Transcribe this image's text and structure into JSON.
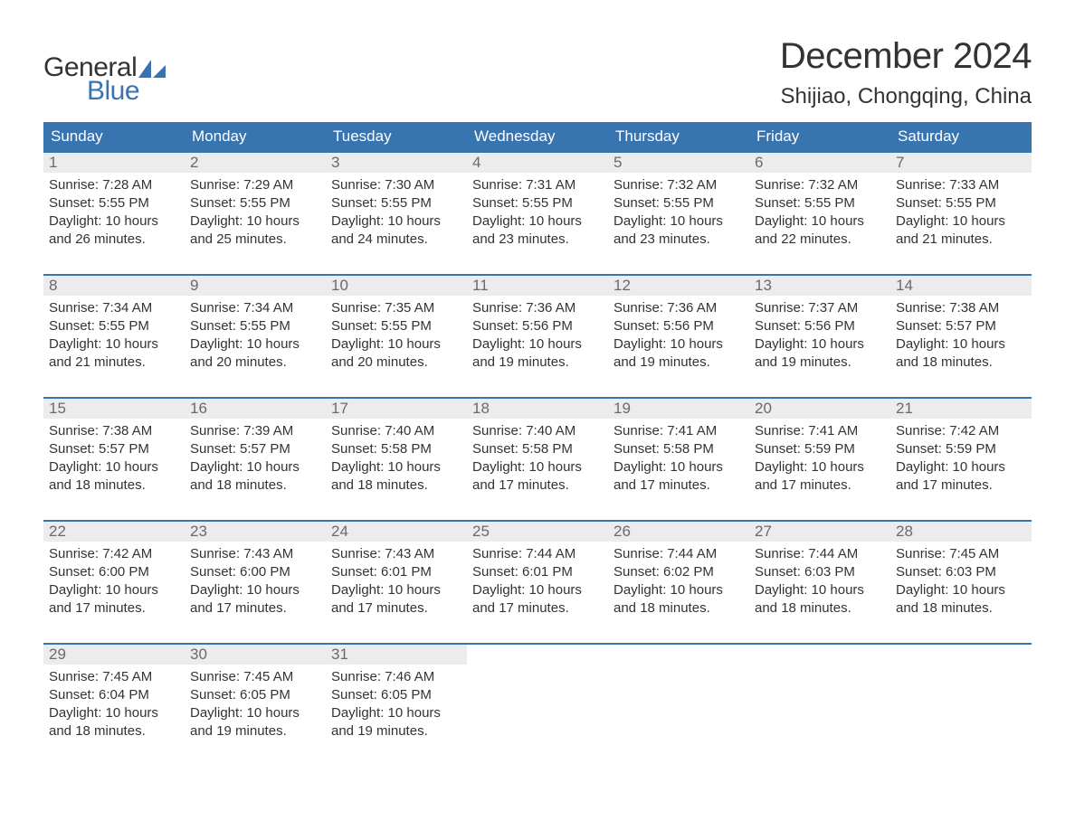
{
  "brand": {
    "general": "General",
    "blue": "Blue"
  },
  "title": {
    "month": "December 2024",
    "location": "Shijiao, Chongqing, China"
  },
  "colors": {
    "header_bg": "#3874b0",
    "daynum_bg": "#ececec",
    "text": "#333333",
    "blue": "#3874b0"
  },
  "weekdays": [
    "Sunday",
    "Monday",
    "Tuesday",
    "Wednesday",
    "Thursday",
    "Friday",
    "Saturday"
  ],
  "weeks": [
    [
      {
        "n": "1",
        "sunrise": "Sunrise: 7:28 AM",
        "sunset": "Sunset: 5:55 PM",
        "day1": "Daylight: 10 hours",
        "day2": "and 26 minutes."
      },
      {
        "n": "2",
        "sunrise": "Sunrise: 7:29 AM",
        "sunset": "Sunset: 5:55 PM",
        "day1": "Daylight: 10 hours",
        "day2": "and 25 minutes."
      },
      {
        "n": "3",
        "sunrise": "Sunrise: 7:30 AM",
        "sunset": "Sunset: 5:55 PM",
        "day1": "Daylight: 10 hours",
        "day2": "and 24 minutes."
      },
      {
        "n": "4",
        "sunrise": "Sunrise: 7:31 AM",
        "sunset": "Sunset: 5:55 PM",
        "day1": "Daylight: 10 hours",
        "day2": "and 23 minutes."
      },
      {
        "n": "5",
        "sunrise": "Sunrise: 7:32 AM",
        "sunset": "Sunset: 5:55 PM",
        "day1": "Daylight: 10 hours",
        "day2": "and 23 minutes."
      },
      {
        "n": "6",
        "sunrise": "Sunrise: 7:32 AM",
        "sunset": "Sunset: 5:55 PM",
        "day1": "Daylight: 10 hours",
        "day2": "and 22 minutes."
      },
      {
        "n": "7",
        "sunrise": "Sunrise: 7:33 AM",
        "sunset": "Sunset: 5:55 PM",
        "day1": "Daylight: 10 hours",
        "day2": "and 21 minutes."
      }
    ],
    [
      {
        "n": "8",
        "sunrise": "Sunrise: 7:34 AM",
        "sunset": "Sunset: 5:55 PM",
        "day1": "Daylight: 10 hours",
        "day2": "and 21 minutes."
      },
      {
        "n": "9",
        "sunrise": "Sunrise: 7:34 AM",
        "sunset": "Sunset: 5:55 PM",
        "day1": "Daylight: 10 hours",
        "day2": "and 20 minutes."
      },
      {
        "n": "10",
        "sunrise": "Sunrise: 7:35 AM",
        "sunset": "Sunset: 5:55 PM",
        "day1": "Daylight: 10 hours",
        "day2": "and 20 minutes."
      },
      {
        "n": "11",
        "sunrise": "Sunrise: 7:36 AM",
        "sunset": "Sunset: 5:56 PM",
        "day1": "Daylight: 10 hours",
        "day2": "and 19 minutes."
      },
      {
        "n": "12",
        "sunrise": "Sunrise: 7:36 AM",
        "sunset": "Sunset: 5:56 PM",
        "day1": "Daylight: 10 hours",
        "day2": "and 19 minutes."
      },
      {
        "n": "13",
        "sunrise": "Sunrise: 7:37 AM",
        "sunset": "Sunset: 5:56 PM",
        "day1": "Daylight: 10 hours",
        "day2": "and 19 minutes."
      },
      {
        "n": "14",
        "sunrise": "Sunrise: 7:38 AM",
        "sunset": "Sunset: 5:57 PM",
        "day1": "Daylight: 10 hours",
        "day2": "and 18 minutes."
      }
    ],
    [
      {
        "n": "15",
        "sunrise": "Sunrise: 7:38 AM",
        "sunset": "Sunset: 5:57 PM",
        "day1": "Daylight: 10 hours",
        "day2": "and 18 minutes."
      },
      {
        "n": "16",
        "sunrise": "Sunrise: 7:39 AM",
        "sunset": "Sunset: 5:57 PM",
        "day1": "Daylight: 10 hours",
        "day2": "and 18 minutes."
      },
      {
        "n": "17",
        "sunrise": "Sunrise: 7:40 AM",
        "sunset": "Sunset: 5:58 PM",
        "day1": "Daylight: 10 hours",
        "day2": "and 18 minutes."
      },
      {
        "n": "18",
        "sunrise": "Sunrise: 7:40 AM",
        "sunset": "Sunset: 5:58 PM",
        "day1": "Daylight: 10 hours",
        "day2": "and 17 minutes."
      },
      {
        "n": "19",
        "sunrise": "Sunrise: 7:41 AM",
        "sunset": "Sunset: 5:58 PM",
        "day1": "Daylight: 10 hours",
        "day2": "and 17 minutes."
      },
      {
        "n": "20",
        "sunrise": "Sunrise: 7:41 AM",
        "sunset": "Sunset: 5:59 PM",
        "day1": "Daylight: 10 hours",
        "day2": "and 17 minutes."
      },
      {
        "n": "21",
        "sunrise": "Sunrise: 7:42 AM",
        "sunset": "Sunset: 5:59 PM",
        "day1": "Daylight: 10 hours",
        "day2": "and 17 minutes."
      }
    ],
    [
      {
        "n": "22",
        "sunrise": "Sunrise: 7:42 AM",
        "sunset": "Sunset: 6:00 PM",
        "day1": "Daylight: 10 hours",
        "day2": "and 17 minutes."
      },
      {
        "n": "23",
        "sunrise": "Sunrise: 7:43 AM",
        "sunset": "Sunset: 6:00 PM",
        "day1": "Daylight: 10 hours",
        "day2": "and 17 minutes."
      },
      {
        "n": "24",
        "sunrise": "Sunrise: 7:43 AM",
        "sunset": "Sunset: 6:01 PM",
        "day1": "Daylight: 10 hours",
        "day2": "and 17 minutes."
      },
      {
        "n": "25",
        "sunrise": "Sunrise: 7:44 AM",
        "sunset": "Sunset: 6:01 PM",
        "day1": "Daylight: 10 hours",
        "day2": "and 17 minutes."
      },
      {
        "n": "26",
        "sunrise": "Sunrise: 7:44 AM",
        "sunset": "Sunset: 6:02 PM",
        "day1": "Daylight: 10 hours",
        "day2": "and 18 minutes."
      },
      {
        "n": "27",
        "sunrise": "Sunrise: 7:44 AM",
        "sunset": "Sunset: 6:03 PM",
        "day1": "Daylight: 10 hours",
        "day2": "and 18 minutes."
      },
      {
        "n": "28",
        "sunrise": "Sunrise: 7:45 AM",
        "sunset": "Sunset: 6:03 PM",
        "day1": "Daylight: 10 hours",
        "day2": "and 18 minutes."
      }
    ],
    [
      {
        "n": "29",
        "sunrise": "Sunrise: 7:45 AM",
        "sunset": "Sunset: 6:04 PM",
        "day1": "Daylight: 10 hours",
        "day2": "and 18 minutes."
      },
      {
        "n": "30",
        "sunrise": "Sunrise: 7:45 AM",
        "sunset": "Sunset: 6:05 PM",
        "day1": "Daylight: 10 hours",
        "day2": "and 19 minutes."
      },
      {
        "n": "31",
        "sunrise": "Sunrise: 7:46 AM",
        "sunset": "Sunset: 6:05 PM",
        "day1": "Daylight: 10 hours",
        "day2": "and 19 minutes."
      },
      null,
      null,
      null,
      null
    ]
  ]
}
